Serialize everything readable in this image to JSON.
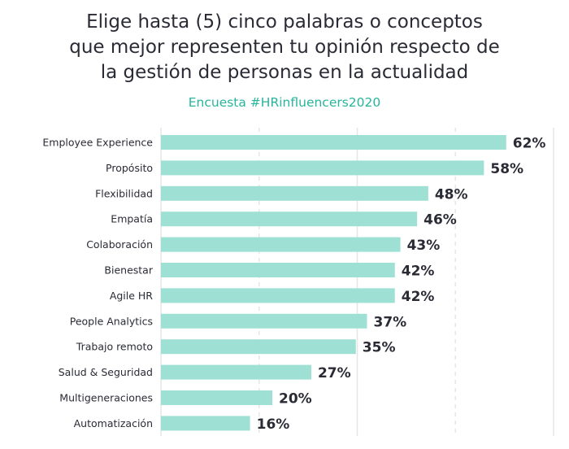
{
  "chart_data": {
    "type": "bar",
    "orientation": "horizontal",
    "title_lines": [
      "Elige hasta (5) cinco palabras o conceptos",
      "que mejor representen tu opinión respecto de",
      "la gestión de personas en la actualidad"
    ],
    "subtitle": "Encuesta #HRinfluencers2020",
    "categories": [
      "Employee Experience",
      "Propósito",
      "Flexibilidad",
      "Empatía",
      "Colaboración",
      "Bienestar",
      "Agile HR",
      "People Analytics",
      "Trabajo remoto",
      "Salud & Seguridad",
      "Multigeneraciones",
      "Automatización"
    ],
    "values": [
      62,
      58,
      48,
      46,
      43,
      42,
      42,
      37,
      35,
      27,
      20,
      16
    ],
    "value_labels": [
      "62%",
      "58%",
      "48%",
      "46%",
      "43%",
      "42%",
      "42%",
      "37%",
      "35%",
      "27%",
      "20%",
      "16%"
    ],
    "unit": "%",
    "xlim": [
      0,
      70.5
    ],
    "grid": true,
    "xlabel": "",
    "ylabel": "",
    "colors": {
      "bar": "#9ee1d4",
      "title": "#2a2b35",
      "subtitle": "#27b59b",
      "grid": "#e6e6e6"
    }
  }
}
